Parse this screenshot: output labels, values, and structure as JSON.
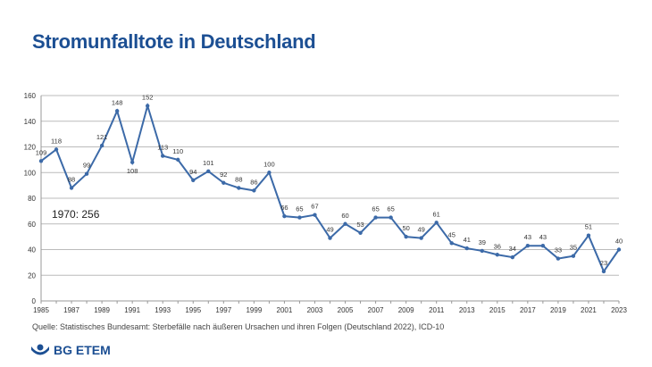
{
  "chart_data": {
    "type": "line",
    "title": "Stromunfalltote in Deutschland",
    "x": [
      1985,
      1986,
      1987,
      1988,
      1989,
      1990,
      1991,
      1992,
      1993,
      1994,
      1995,
      1996,
      1997,
      1998,
      1999,
      2000,
      2001,
      2002,
      2003,
      2004,
      2005,
      2006,
      2007,
      2008,
      2009,
      2010,
      2011,
      2012,
      2013,
      2014,
      2015,
      2016,
      2017,
      2018,
      2019,
      2020,
      2021,
      2022,
      2023
    ],
    "values": [
      109,
      118,
      88,
      99,
      121,
      148,
      108,
      152,
      113,
      110,
      94,
      101,
      92,
      88,
      86,
      100,
      66,
      65,
      67,
      49,
      60,
      53,
      65,
      65,
      50,
      49,
      61,
      45,
      41,
      39,
      36,
      34,
      43,
      43,
      33,
      35,
      51,
      23,
      40
    ],
    "xticks": [
      "1985",
      "1987",
      "1989",
      "1991",
      "1993",
      "1995",
      "1997",
      "1999",
      "2001",
      "2003",
      "2005",
      "2007",
      "2009",
      "2011",
      "2013",
      "2015",
      "2017",
      "2019",
      "2021",
      "2023"
    ],
    "yticks": [
      0,
      20,
      40,
      60,
      80,
      100,
      120,
      140,
      160
    ],
    "ylim": [
      0,
      160
    ],
    "xlabel": "",
    "ylabel": "",
    "grid": true,
    "annotation": "1970: 256",
    "line_color": "#3c6aa8"
  },
  "source": "Quelle: Statistisches Bundesamt: Sterbefälle nach äußeren Ursachen und ihren Folgen (Deutschland 2022), ICD-10",
  "logo": "BG ETEM"
}
